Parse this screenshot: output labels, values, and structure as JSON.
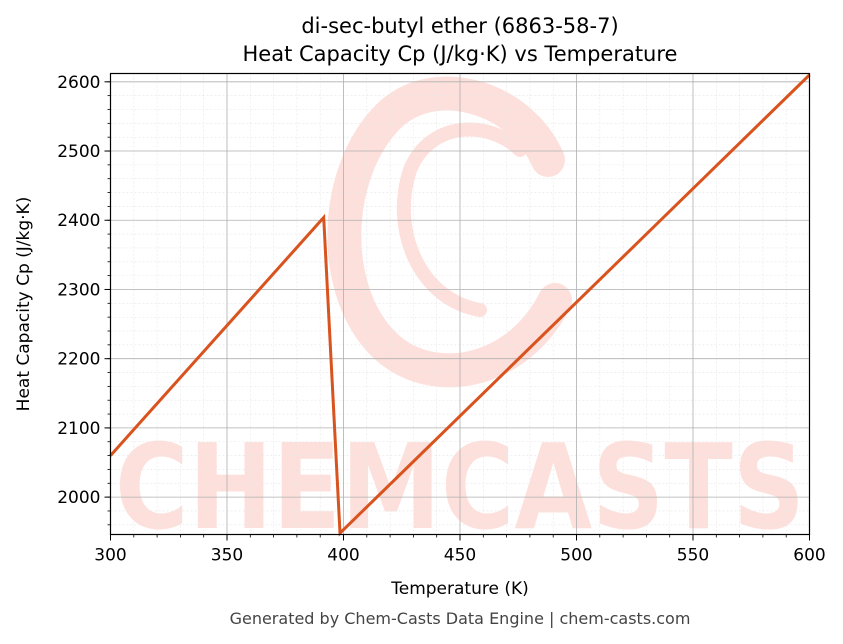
{
  "chart_data": {
    "type": "line",
    "title": "di-sec-butyl ether (6863-58-7)",
    "subtitle": "Heat Capacity Cp (J/kg·K) vs Temperature",
    "xlabel": "Temperature (K)",
    "ylabel": "Heat Capacity Cp (J/kg·K)",
    "xlim": [
      300,
      600
    ],
    "ylim": [
      1946,
      2612
    ],
    "xticks": [
      300,
      350,
      400,
      450,
      500,
      550,
      600
    ],
    "yticks": [
      2000,
      2100,
      2200,
      2300,
      2400,
      2500,
      2600
    ],
    "grid": true,
    "series": [
      {
        "color": "#d9531e",
        "x": [
          300,
          391.5,
          398.5,
          600
        ],
        "y": [
          2060,
          2404,
          1948,
          2610
        ]
      }
    ]
  },
  "footer": "Generated by Chem-Casts Data Engine | chem-casts.com",
  "watermark": "CHEMCASTS",
  "colors": {
    "line": "#d9531e",
    "watermark": "#fde0db",
    "grid_major": "#b0b0b0",
    "grid_minor": "#e6e6e6"
  }
}
